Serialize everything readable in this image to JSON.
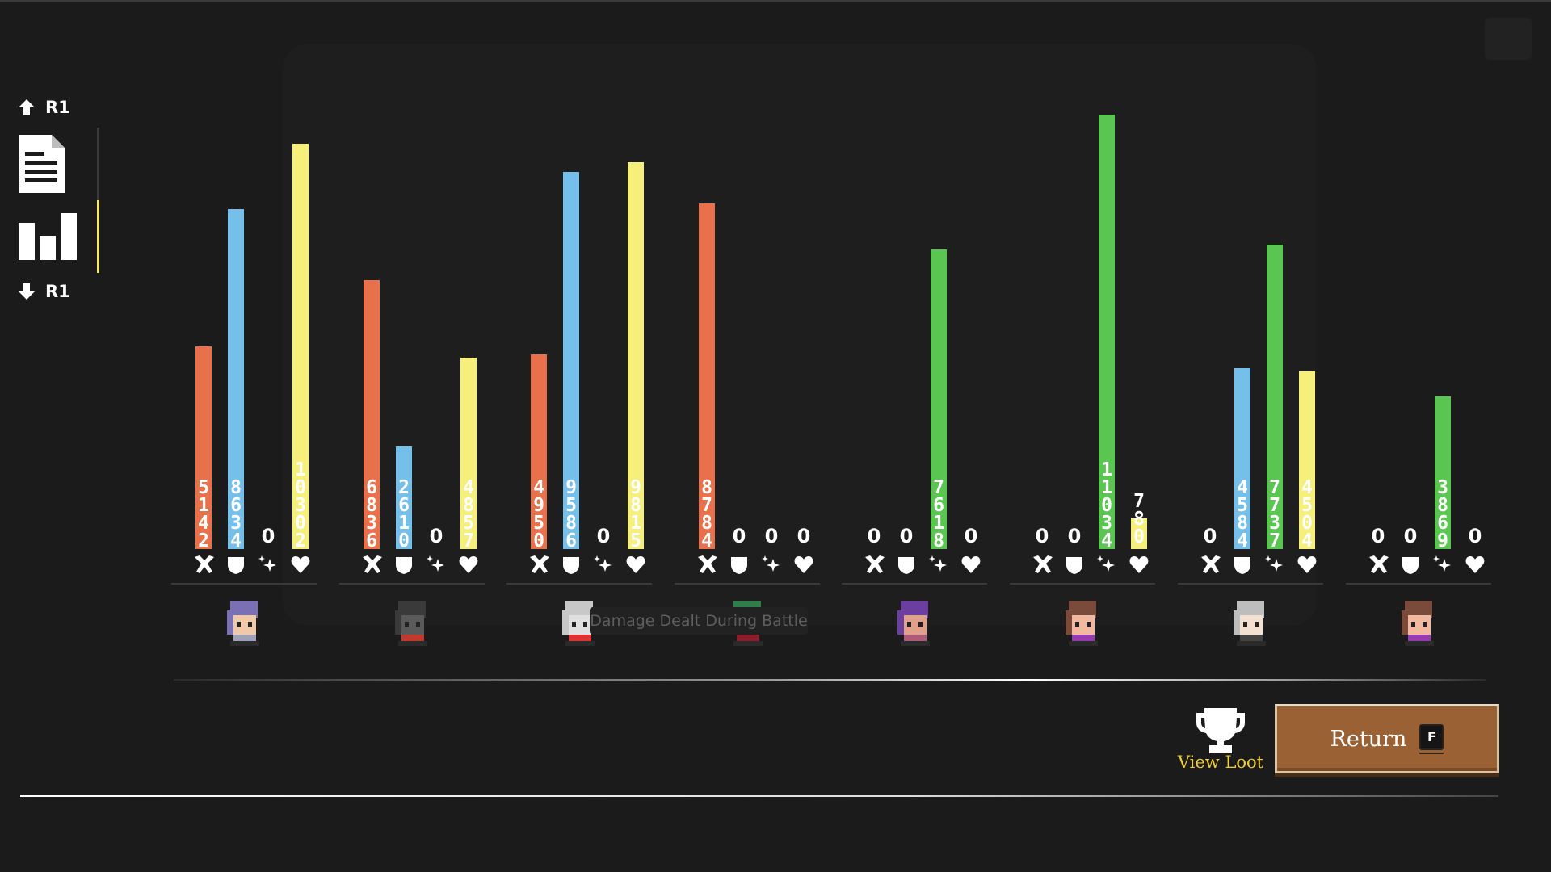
{
  "nav": {
    "up_key": "R1",
    "down_key": "R1",
    "items": [
      {
        "id": "report",
        "icon": "document-icon"
      },
      {
        "id": "stats",
        "icon": "bar-chart-icon"
      }
    ]
  },
  "tooltip": "Damage Dealt During Battle",
  "stat_categories": [
    {
      "id": "damage",
      "icon": "crossed-weapons-icon",
      "color": "#e8704a"
    },
    {
      "id": "defense",
      "icon": "shield-icon",
      "color": "#74c0ea"
    },
    {
      "id": "buff",
      "icon": "sparkle-icon",
      "color": "#5bc552"
    },
    {
      "id": "healing",
      "icon": "heart-icon",
      "color": "#f6ef7c"
    }
  ],
  "characters": [
    {
      "id": "helmet-knight",
      "stats": [
        {
          "value": 5142,
          "label": "5\n1\n4\n2"
        },
        {
          "value": 8634,
          "label": "8\n6\n3\n4"
        },
        {
          "value": 0,
          "label": "0"
        },
        {
          "value": 10302,
          "label": "1\n0\n3\n0\n2"
        }
      ]
    },
    {
      "id": "dark-spearman",
      "stats": [
        {
          "value": 6836,
          "label": "6\n8\n3\n6"
        },
        {
          "value": 2610,
          "label": "2\n6\n1\n0"
        },
        {
          "value": 0,
          "label": "0"
        },
        {
          "value": 4857,
          "label": "4\n8\n5\n7"
        }
      ]
    },
    {
      "id": "plumed-knight",
      "stats": [
        {
          "value": 4950,
          "label": "4\n9\n5\n0"
        },
        {
          "value": 9586,
          "label": "9\n5\n8\n6"
        },
        {
          "value": 0,
          "label": "0"
        },
        {
          "value": 9815,
          "label": "9\n8\n1\n5"
        }
      ]
    },
    {
      "id": "horned-druid",
      "stats": [
        {
          "value": 8784,
          "label": "8\n7\n8\n4"
        },
        {
          "value": 0,
          "label": "0"
        },
        {
          "value": 0,
          "label": "0"
        },
        {
          "value": 0,
          "label": "0"
        }
      ]
    },
    {
      "id": "antlered-girl",
      "stats": [
        {
          "value": 0,
          "label": "0"
        },
        {
          "value": 0,
          "label": "0"
        },
        {
          "value": 7618,
          "label": "7\n6\n1\n8"
        },
        {
          "value": 0,
          "label": "0"
        }
      ]
    },
    {
      "id": "brown-hair-girl",
      "stats": [
        {
          "value": 0,
          "label": "0"
        },
        {
          "value": 0,
          "label": "0"
        },
        {
          "value": 11034,
          "label": "1\n1\n0\n3\n4"
        },
        {
          "value": 780,
          "label": "7\n8\n0"
        }
      ]
    },
    {
      "id": "silver-hair-mage",
      "stats": [
        {
          "value": 0,
          "label": "0"
        },
        {
          "value": 4584,
          "label": "4\n5\n8\n4"
        },
        {
          "value": 7737,
          "label": "7\n7\n3\n7"
        },
        {
          "value": 4504,
          "label": "4\n5\n0\n4"
        }
      ]
    },
    {
      "id": "brown-hair-girl-2",
      "stats": [
        {
          "value": 0,
          "label": "0"
        },
        {
          "value": 0,
          "label": "0"
        },
        {
          "value": 3869,
          "label": "3\n8\n6\n9"
        },
        {
          "value": 0,
          "label": "0"
        }
      ]
    }
  ],
  "view_loot": {
    "label": "View Loot",
    "icon": "trophy-icon"
  },
  "return_button": {
    "label": "Return",
    "key": "F"
  }
}
